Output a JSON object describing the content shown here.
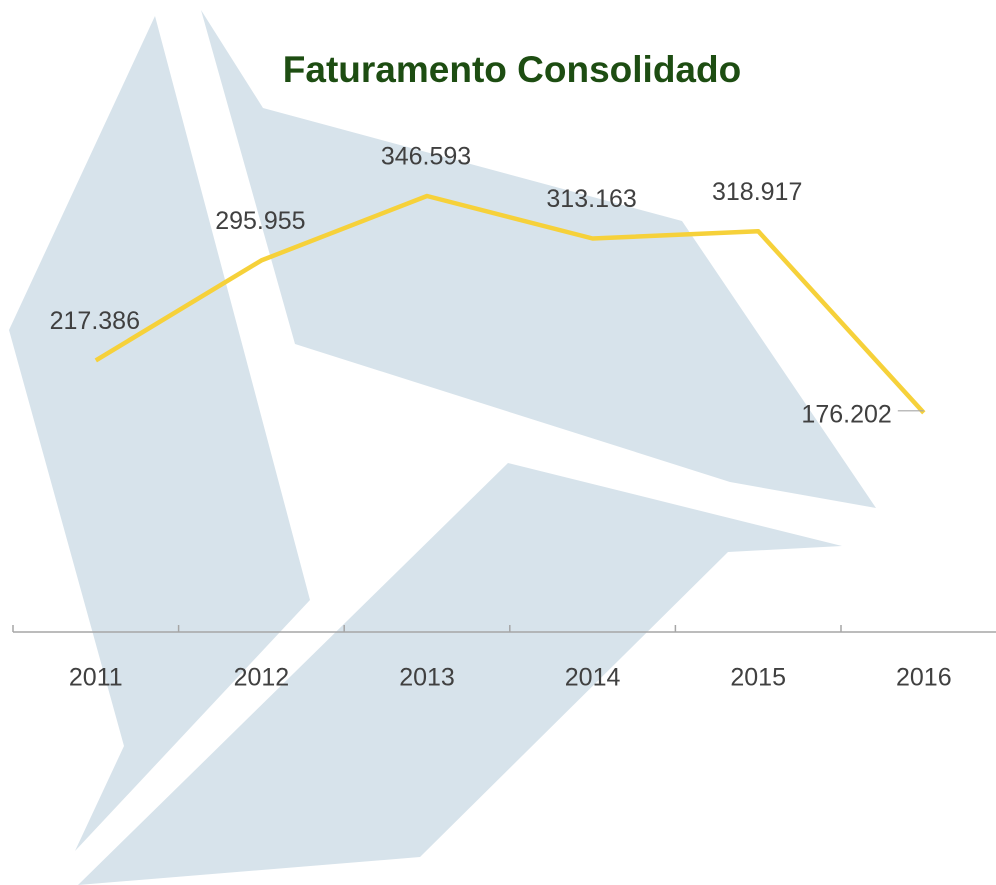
{
  "chart_data": {
    "type": "line",
    "title": "Faturamento Consolidado",
    "categories": [
      "2011",
      "2012",
      "2013",
      "2014",
      "2015",
      "2016"
    ],
    "values": [
      217386,
      295955,
      346593,
      313163,
      318917,
      176202
    ],
    "value_labels": [
      "217.386",
      "295.955",
      "346.593",
      "313.163",
      "318.917",
      "176.202"
    ],
    "color": "#f6d13a"
  }
}
